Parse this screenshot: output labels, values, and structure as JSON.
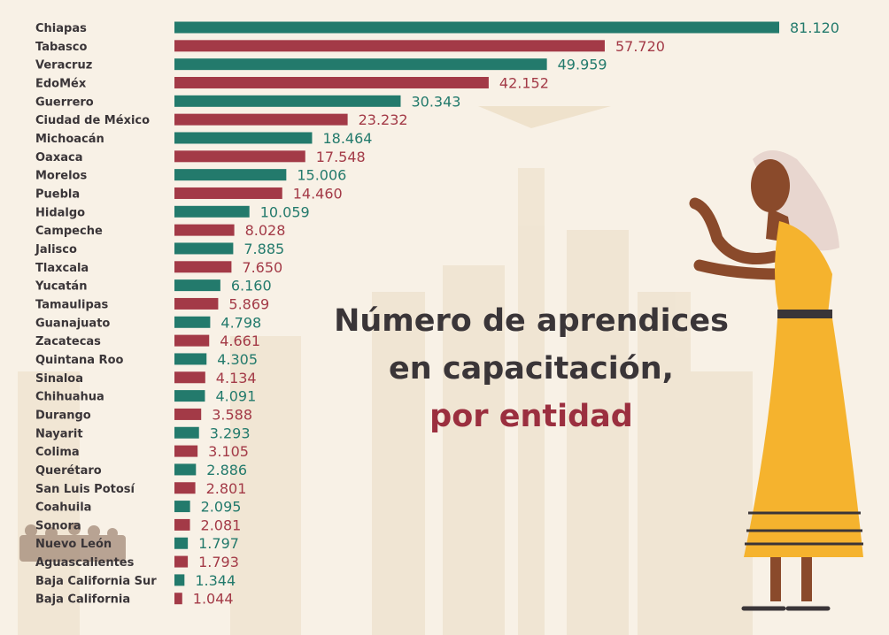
{
  "title": {
    "line1": "Número de aprendices",
    "line2": "en capacitación,",
    "line3": "por entidad"
  },
  "colors": {
    "teal": "#237a6c",
    "red": "#a33a47",
    "background": "#f8f1e6",
    "title": "#3a3538",
    "accent": "#9b2f3f"
  },
  "chart_data": {
    "type": "bar",
    "orientation": "horizontal",
    "categories": [
      "Chiapas",
      "Tabasco",
      "Veracruz",
      "EdoMéx",
      "Guerrero",
      "Ciudad de México",
      "Michoacán",
      "Oaxaca",
      "Morelos",
      "Puebla",
      "Hidalgo",
      "Campeche",
      "Jalisco",
      "Tlaxcala",
      "Yucatán",
      "Tamaulipas",
      "Guanajuato",
      "Zacatecas",
      "Quintana Roo",
      "Sinaloa",
      "Chihuahua",
      "Durango",
      "Nayarit",
      "Colima",
      "Querétaro",
      "San Luis Potosí",
      "Coahuila",
      "Sonora",
      "Nuevo León",
      "Aguascalientes",
      "Baja California Sur",
      "Baja California"
    ],
    "values": [
      81120,
      57720,
      49959,
      42152,
      30343,
      23232,
      18464,
      17548,
      15006,
      14460,
      10059,
      8028,
      7885,
      7650,
      6160,
      5869,
      4798,
      4661,
      4305,
      4134,
      4091,
      3588,
      3293,
      3105,
      2886,
      2801,
      2095,
      2081,
      1797,
      1793,
      1344,
      1044
    ],
    "labels": [
      "81.120",
      "57.720",
      "49.959",
      "42.152",
      "30.343",
      "23.232",
      "18.464",
      "17.548",
      "15.006",
      "14.460",
      "10.059",
      "8.028",
      "7.885",
      "7.650",
      "6.160",
      "5.869",
      "4.798",
      "4.661",
      "4.305",
      "4.134",
      "4.091",
      "3.588",
      "3.293",
      "3.105",
      "2.886",
      "2.801",
      "2.095",
      "2.081",
      "1.797",
      "1.793",
      "1.344",
      "1.044"
    ],
    "bar_colors": "alternating teal / red",
    "grid": false,
    "legend": "none"
  }
}
